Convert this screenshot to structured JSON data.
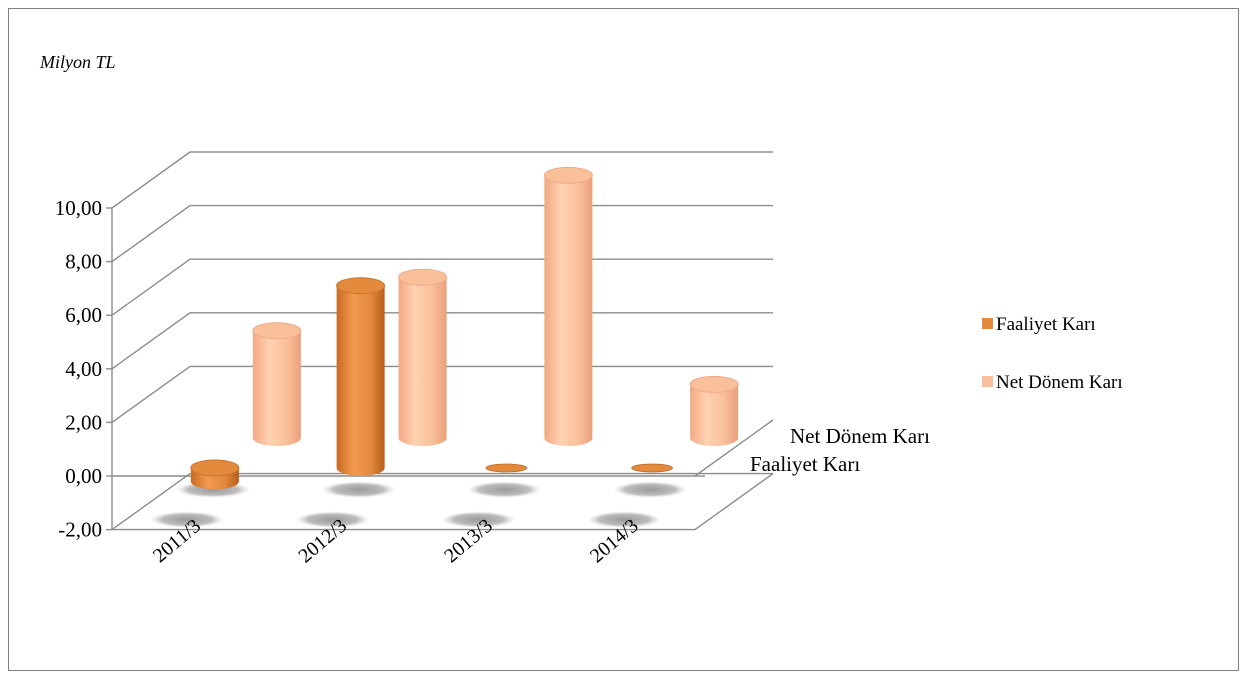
{
  "chart_data": {
    "type": "bar",
    "style": "3d-cylinder",
    "title": "",
    "unit_label": "Milyon TL",
    "categories": [
      "2011/3",
      "2012/3",
      "2013/3",
      "2014/3"
    ],
    "series": [
      {
        "name": "Faaliyet Karı",
        "values": [
          -0.5,
          6.8,
          0.0,
          0.0
        ],
        "color": "#E38A3D"
      },
      {
        "name": "Net Dönem Karı",
        "values": [
          4.0,
          6.0,
          9.8,
          2.0
        ],
        "color": "#FAC09A"
      }
    ],
    "yticks": [
      "-2,00",
      "0,00",
      "2,00",
      "4,00",
      "6,00",
      "8,00",
      "10,00"
    ],
    "ylim": [
      -2,
      10
    ],
    "grid": true,
    "legend_position": "right",
    "depth_labels": [
      "Net Dönem Karı",
      "Faaliyet Karı"
    ]
  }
}
